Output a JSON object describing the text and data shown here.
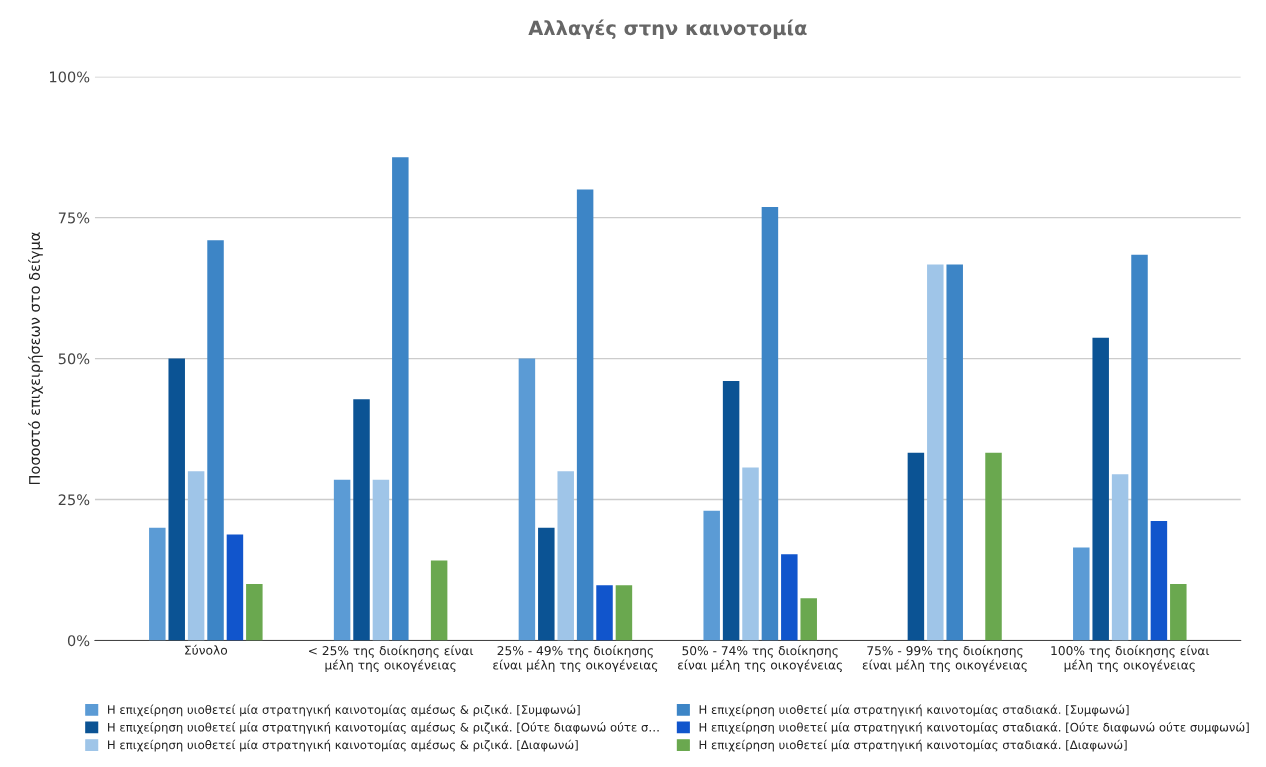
{
  "chart_data": {
    "type": "bar",
    "title": "Αλλαγές στην καινοτομία",
    "ylabel": "Ποσοστό επιχειρήσεων στο δείγμα",
    "categories": [
      "Σύνολο",
      "< 25% της διοίκησης είναι\nμέλη της οικογένειας",
      "25% - 49% της διοίκησης\nείναι μέλη της οικογένειας",
      "50% - 74% της διοίκησης\nείναι μέλη της οικογένειας",
      "75% - 99% της διοίκησης\nείναι μέλη της οικογένειας",
      "100% της διοίκησης είναι\nμέλη της οικογένειας"
    ],
    "series": [
      {
        "name": "Η επιχείρηση υιοθετεί μία στρατηγική καινοτομίας αμέσως & ριζικά. [Συμφωνώ]",
        "color": "#5b9bd5",
        "values": [
          20,
          28.5,
          50,
          23,
          null,
          16.5
        ]
      },
      {
        "name": "Η επιχείρηση υιοθετεί μία στρατηγική καινοτομίας αμέσως & ριζικά. [Ούτε διαφωνώ ούτε σ…",
        "color": "#0b5394",
        "values": [
          50,
          42.8,
          20,
          46,
          33.3,
          53.7
        ]
      },
      {
        "name": "Η επιχείρηση υιοθετεί μία στρατηγική καινοτομίας αμέσως & ριζικά. [Διαφωνώ]",
        "color": "#9fc5e8",
        "values": [
          30,
          28.5,
          30,
          30.7,
          66.7,
          29.5
        ]
      },
      {
        "name": "Η επιχείρηση υιοθετεί μία στρατηγική καινοτομίας σταδιακά. [Συμφωνώ]",
        "color": "#3d85c6",
        "values": [
          71,
          85.7,
          80,
          76.9,
          66.7,
          68.4
        ]
      },
      {
        "name": "Η επιχείρηση υιοθετεί μία στρατηγική καινοτομίας σταδιακά. [Ούτε διαφωνώ ούτε συμφωνώ]",
        "color": "#1155cc",
        "values": [
          18.8,
          null,
          9.8,
          15.3,
          null,
          21.2
        ]
      },
      {
        "name": "Η επιχείρηση υιοθετεί μία στρατηγική καινοτομίας σταδιακά. [Διαφωνώ]",
        "color": "#6aa84f",
        "values": [
          10,
          14.2,
          9.8,
          7.5,
          33.3,
          10
        ]
      }
    ],
    "ylim": [
      0,
      100
    ],
    "yticks": [
      {
        "value": 0,
        "label": "0%"
      },
      {
        "value": 25,
        "label": "25%"
      },
      {
        "value": 50,
        "label": "50%"
      },
      {
        "value": 75,
        "label": "75%"
      },
      {
        "value": 100,
        "label": "100%"
      }
    ],
    "grid": "y",
    "legend": "bottom"
  }
}
